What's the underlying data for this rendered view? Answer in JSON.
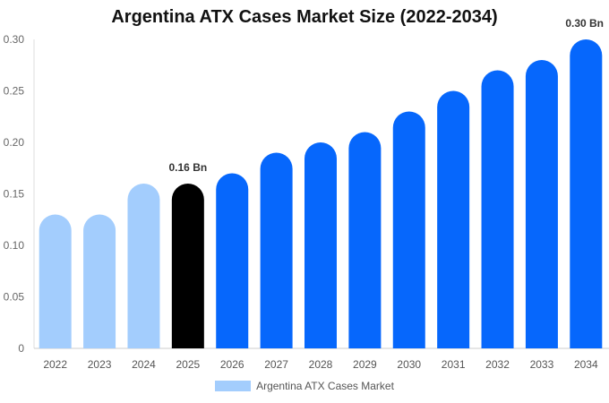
{
  "chart_data": {
    "type": "bar",
    "title": "Argentina ATX Cases Market Size (2022-2034)",
    "xlabel": "",
    "ylabel": "",
    "categories": [
      "2022",
      "2023",
      "2024",
      "2025",
      "2026",
      "2027",
      "2028",
      "2029",
      "2030",
      "2031",
      "2032",
      "2033",
      "2034"
    ],
    "series": [
      {
        "name": "Argentina ATX Cases Market",
        "values": [
          0.13,
          0.13,
          0.16,
          0.16,
          0.17,
          0.19,
          0.2,
          0.21,
          0.23,
          0.25,
          0.27,
          0.28,
          0.3
        ]
      }
    ],
    "ylim": [
      0,
      0.3
    ],
    "yticks": [
      0,
      0.05,
      0.1,
      0.15,
      0.2,
      0.25,
      0.3
    ],
    "ytick_labels": [
      "0",
      "0.05",
      "0.10",
      "0.15",
      "0.20",
      "0.25",
      "0.30"
    ],
    "annotations": [
      {
        "category": "2025",
        "text": "0.16 Bn"
      },
      {
        "category": "2034",
        "text": "0.30 Bn"
      }
    ],
    "bar_colors": {
      "historical": "#a3cdfd",
      "current": "#000000",
      "forecast": "#0667fc"
    },
    "historical_years": [
      "2022",
      "2023",
      "2024"
    ],
    "current_year": "2025",
    "legend_color": "#a3cdfd",
    "grid": false,
    "legend_position": "bottom-center"
  }
}
